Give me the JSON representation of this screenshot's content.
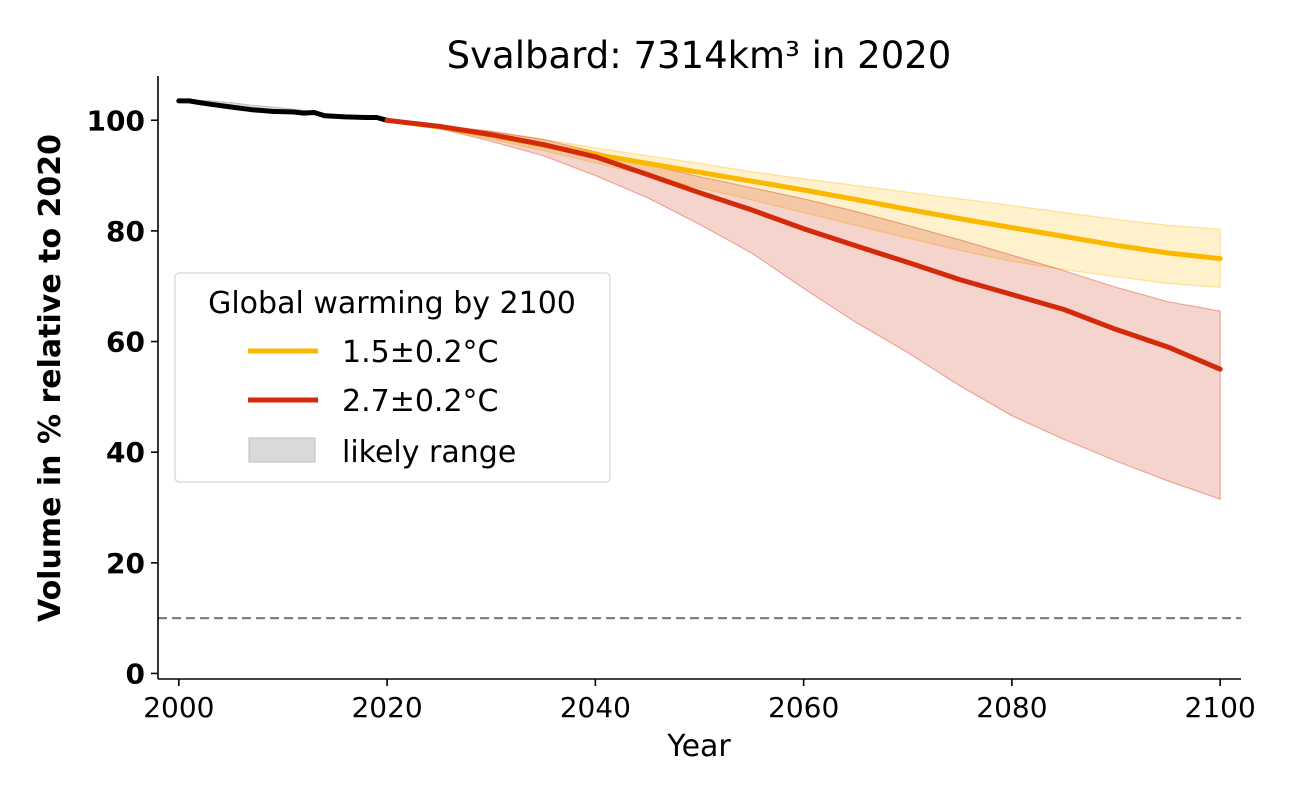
{
  "chart_data": {
    "type": "line",
    "title": "Svalbard: 7314km³ in 2020",
    "xlabel": "Year",
    "ylabel": "Volume in % relative to 2020",
    "xlim": [
      1998,
      2102
    ],
    "ylim": [
      -1,
      108
    ],
    "xticks": [
      2000,
      2020,
      2040,
      2060,
      2080,
      2100
    ],
    "yticks": [
      0,
      20,
      40,
      60,
      80,
      100
    ],
    "grid": false,
    "legend": {
      "title": "Global warming by 2100",
      "placement": "center-left",
      "entries": [
        "1.5±0.2°C",
        "2.7±0.2°C",
        "likely range"
      ]
    },
    "threshold_line": {
      "y": 10,
      "style": "dashed",
      "color": "#808080"
    },
    "colors": {
      "historical": "#000000",
      "scenario_low": "#FBB800",
      "scenario_high": "#D42A0C",
      "likely_range": "#D9D9D9"
    },
    "historical": {
      "x": [
        2000,
        2001,
        2002,
        2003,
        2005,
        2007,
        2009,
        2011,
        2012,
        2013,
        2014,
        2016,
        2018,
        2019,
        2020
      ],
      "y": [
        103.5,
        103.5,
        103.2,
        102.9,
        102.4,
        101.9,
        101.6,
        101.5,
        101.3,
        101.4,
        100.8,
        100.6,
        100.5,
        100.5,
        100.0
      ],
      "lower": [
        103.5,
        103.5,
        103.3,
        102.9,
        102.4,
        101.9,
        101.6,
        101.5,
        101.3,
        101.3,
        100.8,
        100.6,
        100.5,
        100.5,
        100.0
      ],
      "upper": [
        103.5,
        103.5,
        103.6,
        103.5,
        103.2,
        102.7,
        102.4,
        102.0,
        101.8,
        101.6,
        101.2,
        100.9,
        100.7,
        100.6,
        100.0
      ]
    },
    "series": [
      {
        "name": "1.5±0.2°C",
        "x": [
          2020,
          2025,
          2030,
          2035,
          2040,
          2045,
          2050,
          2055,
          2060,
          2065,
          2070,
          2075,
          2080,
          2085,
          2090,
          2095,
          2100
        ],
        "values": [
          100,
          98.8,
          97.3,
          95.5,
          93.8,
          92.2,
          90.6,
          89.0,
          87.4,
          85.7,
          83.9,
          82.2,
          80.6,
          79.0,
          77.4,
          76.0,
          75.0
        ],
        "lower": [
          100,
          98.5,
          96.6,
          94.5,
          92.3,
          90.0,
          87.8,
          85.6,
          83.3,
          81.0,
          78.7,
          76.5,
          74.5,
          73.0,
          71.7,
          70.5,
          69.8
        ],
        "upper": [
          100,
          99.0,
          98.0,
          96.6,
          95.0,
          93.6,
          92.2,
          90.7,
          89.4,
          88.2,
          87.0,
          85.8,
          84.6,
          83.3,
          82.1,
          81.0,
          80.3
        ]
      },
      {
        "name": "2.7±0.2°C",
        "x": [
          2020,
          2025,
          2030,
          2035,
          2040,
          2045,
          2050,
          2055,
          2060,
          2065,
          2070,
          2075,
          2080,
          2085,
          2090,
          2095,
          2100
        ],
        "values": [
          100,
          98.9,
          97.4,
          95.6,
          93.4,
          90.2,
          86.9,
          83.8,
          80.4,
          77.3,
          74.3,
          71.2,
          68.5,
          65.8,
          62.2,
          59.0,
          55.0
        ],
        "lower": [
          100,
          98.5,
          96.2,
          93.6,
          90.0,
          86.0,
          81.2,
          76.0,
          69.6,
          63.5,
          58.0,
          52.0,
          46.6,
          42.3,
          38.4,
          34.8,
          31.5
        ],
        "upper": [
          100,
          99.1,
          98.0,
          96.5,
          94.3,
          92.0,
          89.8,
          87.8,
          85.8,
          83.5,
          81.0,
          78.4,
          75.6,
          72.8,
          69.8,
          67.2,
          65.5
        ]
      }
    ]
  }
}
